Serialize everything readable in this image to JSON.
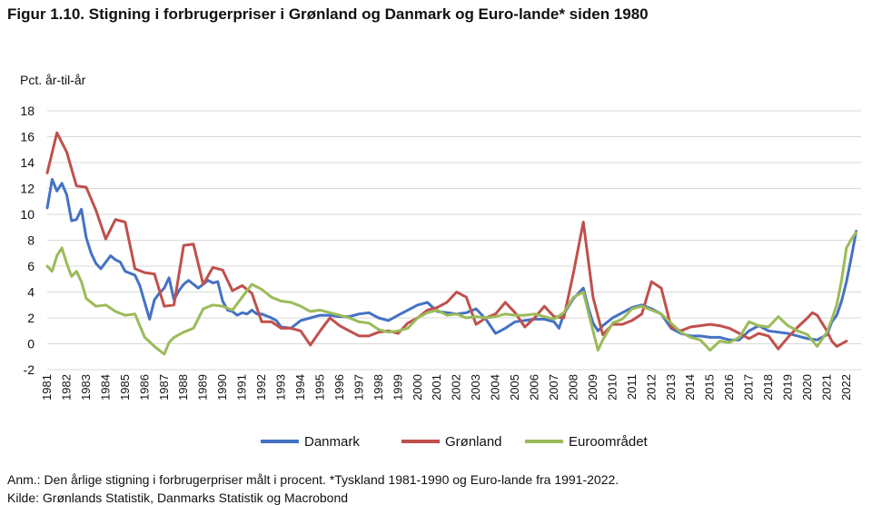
{
  "title": "Figur 1.10. Stigning i forbrugerpriser i Grønland og Danmark og Euro-lande* siden 1980",
  "note": "Anm.: Den årlige stigning i forbrugerpriser målt i procent.  *Tyskland 1981-1990 og Euro-lande fra 1991-2022.",
  "source_partial": "Kilde: Grønlands Statistik, Danmarks Statistik og Macrobond",
  "chart_data": {
    "type": "line",
    "ylabel": "Pct. år-til-år",
    "xlabel": "",
    "ylim": [
      -2,
      18
    ],
    "yticks": [
      -2,
      0,
      2,
      4,
      6,
      8,
      10,
      12,
      14,
      16,
      18
    ],
    "xlim": [
      1981,
      2022.75
    ],
    "xticks": [
      "1981",
      "1982",
      "1983",
      "1984",
      "1985",
      "1986",
      "1987",
      "1988",
      "1989",
      "1990",
      "1991",
      "1992",
      "1993",
      "1994",
      "1995",
      "1996",
      "1997",
      "1998",
      "1999",
      "2000",
      "2001",
      "2002",
      "2003",
      "2004",
      "2005",
      "2006",
      "2007",
      "2008",
      "2009",
      "2010",
      "2011",
      "2012",
      "2013",
      "2014",
      "2015",
      "2016",
      "2017",
      "2018",
      "2019",
      "2020",
      "2021",
      "2022"
    ],
    "grid": true,
    "legend": "bottom",
    "colors": {
      "Danmark": "#4472c4",
      "Grønland": "#c0504d",
      "Euroområdet": "#9bbb59"
    },
    "series": [
      {
        "name": "Danmark",
        "points": [
          [
            1981,
            10.5
          ],
          [
            1981.25,
            12.7
          ],
          [
            1981.5,
            11.8
          ],
          [
            1981.75,
            12.4
          ],
          [
            1982,
            11.5
          ],
          [
            1982.25,
            9.5
          ],
          [
            1982.5,
            9.6
          ],
          [
            1982.75,
            10.4
          ],
          [
            1983,
            8.2
          ],
          [
            1983.25,
            7.0
          ],
          [
            1983.5,
            6.2
          ],
          [
            1983.75,
            5.8
          ],
          [
            1984,
            6.3
          ],
          [
            1984.25,
            6.8
          ],
          [
            1984.5,
            6.5
          ],
          [
            1984.75,
            6.3
          ],
          [
            1985,
            5.6
          ],
          [
            1985.5,
            5.3
          ],
          [
            1985.75,
            4.5
          ],
          [
            1986,
            3.2
          ],
          [
            1986.25,
            1.9
          ],
          [
            1986.5,
            3.4
          ],
          [
            1986.75,
            3.9
          ],
          [
            1987,
            4.3
          ],
          [
            1987.25,
            5.1
          ],
          [
            1987.5,
            3.4
          ],
          [
            1987.75,
            4.1
          ],
          [
            1988,
            4.6
          ],
          [
            1988.25,
            4.9
          ],
          [
            1988.5,
            4.6
          ],
          [
            1988.75,
            4.3
          ],
          [
            1989,
            4.6
          ],
          [
            1989.25,
            4.9
          ],
          [
            1989.5,
            4.7
          ],
          [
            1989.75,
            4.8
          ],
          [
            1990,
            3.3
          ],
          [
            1990.25,
            2.6
          ],
          [
            1990.5,
            2.5
          ],
          [
            1990.75,
            2.2
          ],
          [
            1991,
            2.4
          ],
          [
            1991.25,
            2.3
          ],
          [
            1991.5,
            2.6
          ],
          [
            1991.75,
            2.3
          ],
          [
            1992,
            2.3
          ],
          [
            1992.5,
            2.0
          ],
          [
            1992.75,
            1.8
          ],
          [
            1993,
            1.3
          ],
          [
            1993.5,
            1.2
          ],
          [
            1994,
            1.8
          ],
          [
            1994.5,
            2.0
          ],
          [
            1995,
            2.2
          ],
          [
            1995.5,
            2.2
          ],
          [
            1996,
            2.1
          ],
          [
            1996.5,
            2.1
          ],
          [
            1997,
            2.3
          ],
          [
            1997.5,
            2.4
          ],
          [
            1998,
            2.0
          ],
          [
            1998.5,
            1.8
          ],
          [
            1999,
            2.2
          ],
          [
            1999.5,
            2.6
          ],
          [
            2000,
            3.0
          ],
          [
            2000.5,
            3.2
          ],
          [
            2001,
            2.5
          ],
          [
            2001.5,
            2.4
          ],
          [
            2002,
            2.3
          ],
          [
            2002.5,
            2.4
          ],
          [
            2003,
            2.7
          ],
          [
            2003.5,
            1.9
          ],
          [
            2004,
            0.8
          ],
          [
            2004.5,
            1.2
          ],
          [
            2005,
            1.7
          ],
          [
            2005.5,
            1.8
          ],
          [
            2006,
            1.9
          ],
          [
            2006.5,
            1.9
          ],
          [
            2007,
            1.7
          ],
          [
            2007.25,
            1.2
          ],
          [
            2007.5,
            2.3
          ],
          [
            2008,
            3.5
          ],
          [
            2008.5,
            4.3
          ],
          [
            2008.75,
            2.8
          ],
          [
            2009,
            1.6
          ],
          [
            2009.25,
            1.0
          ],
          [
            2009.5,
            1.4
          ],
          [
            2010,
            2.0
          ],
          [
            2010.5,
            2.4
          ],
          [
            2011,
            2.8
          ],
          [
            2011.5,
            3.0
          ],
          [
            2012,
            2.7
          ],
          [
            2012.5,
            2.3
          ],
          [
            2013,
            1.2
          ],
          [
            2013.5,
            0.8
          ],
          [
            2014,
            0.6
          ],
          [
            2014.5,
            0.6
          ],
          [
            2015,
            0.5
          ],
          [
            2015.5,
            0.5
          ],
          [
            2016,
            0.3
          ],
          [
            2016.5,
            0.3
          ],
          [
            2017,
            1.0
          ],
          [
            2017.5,
            1.4
          ],
          [
            2018,
            1.0
          ],
          [
            2018.5,
            0.9
          ],
          [
            2019,
            0.8
          ],
          [
            2019.5,
            0.6
          ],
          [
            2020,
            0.4
          ],
          [
            2020.5,
            0.3
          ],
          [
            2021,
            0.7
          ],
          [
            2021.25,
            1.7
          ],
          [
            2021.5,
            2.2
          ],
          [
            2021.75,
            3.3
          ],
          [
            2022,
            4.8
          ],
          [
            2022.25,
            6.7
          ],
          [
            2022.5,
            8.7
          ]
        ]
      },
      {
        "name": "Grønland",
        "points": [
          [
            1981,
            13.2
          ],
          [
            1981.5,
            16.3
          ],
          [
            1982,
            14.8
          ],
          [
            1982.5,
            12.2
          ],
          [
            1983,
            12.1
          ],
          [
            1983.5,
            10.3
          ],
          [
            1984,
            8.1
          ],
          [
            1984.5,
            9.6
          ],
          [
            1985,
            9.4
          ],
          [
            1985.5,
            5.8
          ],
          [
            1986,
            5.5
          ],
          [
            1986.5,
            5.4
          ],
          [
            1987,
            2.9
          ],
          [
            1987.5,
            3.0
          ],
          [
            1988,
            7.6
          ],
          [
            1988.5,
            7.7
          ],
          [
            1989,
            4.6
          ],
          [
            1989.5,
            5.9
          ],
          [
            1990,
            5.7
          ],
          [
            1990.5,
            4.1
          ],
          [
            1991,
            4.5
          ],
          [
            1991.5,
            3.9
          ],
          [
            1992,
            1.7
          ],
          [
            1992.5,
            1.7
          ],
          [
            1993,
            1.2
          ],
          [
            1993.5,
            1.2
          ],
          [
            1994,
            1.0
          ],
          [
            1994.5,
            -0.1
          ],
          [
            1995,
            1.0
          ],
          [
            1995.5,
            2.0
          ],
          [
            1996,
            1.4
          ],
          [
            1996.5,
            1.0
          ],
          [
            1997,
            0.6
          ],
          [
            1997.5,
            0.6
          ],
          [
            1998,
            0.9
          ],
          [
            1998.5,
            1.0
          ],
          [
            1999,
            0.8
          ],
          [
            1999.5,
            1.6
          ],
          [
            2000,
            2.0
          ],
          [
            2000.5,
            2.6
          ],
          [
            2001,
            2.8
          ],
          [
            2001.5,
            3.2
          ],
          [
            2002,
            4.0
          ],
          [
            2002.5,
            3.6
          ],
          [
            2003,
            1.5
          ],
          [
            2003.5,
            2.0
          ],
          [
            2004,
            2.3
          ],
          [
            2004.5,
            3.2
          ],
          [
            2005,
            2.4
          ],
          [
            2005.5,
            1.3
          ],
          [
            2006,
            2.0
          ],
          [
            2006.5,
            2.9
          ],
          [
            2007,
            2.1
          ],
          [
            2007.5,
            2.0
          ],
          [
            2008,
            5.5
          ],
          [
            2008.5,
            9.4
          ],
          [
            2009,
            3.6
          ],
          [
            2009.5,
            0.7
          ],
          [
            2010,
            1.5
          ],
          [
            2010.5,
            1.5
          ],
          [
            2011,
            1.8
          ],
          [
            2011.5,
            2.3
          ],
          [
            2012,
            4.8
          ],
          [
            2012.5,
            4.3
          ],
          [
            2013,
            1.3
          ],
          [
            2013.5,
            1.0
          ],
          [
            2014,
            1.3
          ],
          [
            2014.5,
            1.4
          ],
          [
            2015,
            1.5
          ],
          [
            2015.5,
            1.4
          ],
          [
            2016,
            1.2
          ],
          [
            2016.5,
            0.8
          ],
          [
            2017,
            0.4
          ],
          [
            2017.5,
            0.8
          ],
          [
            2018,
            0.6
          ],
          [
            2018.5,
            -0.4
          ],
          [
            2019,
            0.5
          ],
          [
            2019.5,
            1.3
          ],
          [
            2020,
            2.0
          ],
          [
            2020.25,
            2.4
          ],
          [
            2020.5,
            2.2
          ],
          [
            2021,
            1.0
          ],
          [
            2021.25,
            0.2
          ],
          [
            2021.5,
            -0.2
          ],
          [
            2022,
            0.2
          ]
        ]
      },
      {
        "name": "Euroområdet",
        "points": [
          [
            1981,
            6.0
          ],
          [
            1981.25,
            5.6
          ],
          [
            1981.5,
            6.8
          ],
          [
            1981.75,
            7.4
          ],
          [
            1982,
            6.2
          ],
          [
            1982.25,
            5.2
          ],
          [
            1982.5,
            5.6
          ],
          [
            1982.75,
            4.8
          ],
          [
            1983,
            3.5
          ],
          [
            1983.5,
            2.9
          ],
          [
            1984,
            3.0
          ],
          [
            1984.5,
            2.5
          ],
          [
            1985,
            2.2
          ],
          [
            1985.5,
            2.3
          ],
          [
            1986,
            0.5
          ],
          [
            1986.5,
            -0.2
          ],
          [
            1987,
            -0.8
          ],
          [
            1987.25,
            0.1
          ],
          [
            1987.5,
            0.5
          ],
          [
            1988,
            0.9
          ],
          [
            1988.5,
            1.2
          ],
          [
            1989,
            2.7
          ],
          [
            1989.5,
            3.0
          ],
          [
            1990,
            2.9
          ],
          [
            1990.5,
            2.6
          ],
          [
            1991,
            3.6
          ],
          [
            1991.5,
            4.6
          ],
          [
            1992,
            4.2
          ],
          [
            1992.5,
            3.6
          ],
          [
            1993,
            3.3
          ],
          [
            1993.5,
            3.2
          ],
          [
            1994,
            2.9
          ],
          [
            1994.5,
            2.5
          ],
          [
            1995,
            2.6
          ],
          [
            1995.5,
            2.4
          ],
          [
            1996,
            2.2
          ],
          [
            1996.5,
            2.0
          ],
          [
            1997,
            1.7
          ],
          [
            1997.5,
            1.6
          ],
          [
            1998,
            1.1
          ],
          [
            1998.5,
            0.9
          ],
          [
            1999,
            1.0
          ],
          [
            1999.5,
            1.2
          ],
          [
            2000,
            2.0
          ],
          [
            2000.5,
            2.4
          ],
          [
            2001,
            2.6
          ],
          [
            2001.5,
            2.2
          ],
          [
            2002,
            2.3
          ],
          [
            2002.5,
            2.0
          ],
          [
            2003,
            2.1
          ],
          [
            2003.5,
            2.0
          ],
          [
            2004,
            2.1
          ],
          [
            2004.5,
            2.3
          ],
          [
            2005,
            2.2
          ],
          [
            2005.5,
            2.2
          ],
          [
            2006,
            2.3
          ],
          [
            2006.5,
            2.1
          ],
          [
            2007,
            1.9
          ],
          [
            2007.5,
            2.4
          ],
          [
            2008,
            3.6
          ],
          [
            2008.5,
            4.0
          ],
          [
            2008.75,
            2.5
          ],
          [
            2009,
            1.0
          ],
          [
            2009.25,
            -0.5
          ],
          [
            2009.5,
            0.3
          ],
          [
            2010,
            1.6
          ],
          [
            2010.5,
            1.9
          ],
          [
            2011,
            2.7
          ],
          [
            2011.5,
            2.9
          ],
          [
            2012,
            2.6
          ],
          [
            2012.5,
            2.3
          ],
          [
            2013,
            1.6
          ],
          [
            2013.5,
            0.9
          ],
          [
            2014,
            0.5
          ],
          [
            2014.5,
            0.3
          ],
          [
            2015,
            -0.5
          ],
          [
            2015.5,
            0.2
          ],
          [
            2016,
            0.1
          ],
          [
            2016.5,
            0.5
          ],
          [
            2017,
            1.7
          ],
          [
            2017.5,
            1.4
          ],
          [
            2018,
            1.3
          ],
          [
            2018.5,
            2.1
          ],
          [
            2019,
            1.4
          ],
          [
            2019.5,
            1.0
          ],
          [
            2020,
            0.7
          ],
          [
            2020.5,
            -0.2
          ],
          [
            2021,
            0.9
          ],
          [
            2021.25,
            1.9
          ],
          [
            2021.5,
            3.0
          ],
          [
            2021.75,
            4.9
          ],
          [
            2022,
            7.4
          ],
          [
            2022.25,
            8.1
          ],
          [
            2022.5,
            8.6
          ]
        ]
      }
    ]
  }
}
